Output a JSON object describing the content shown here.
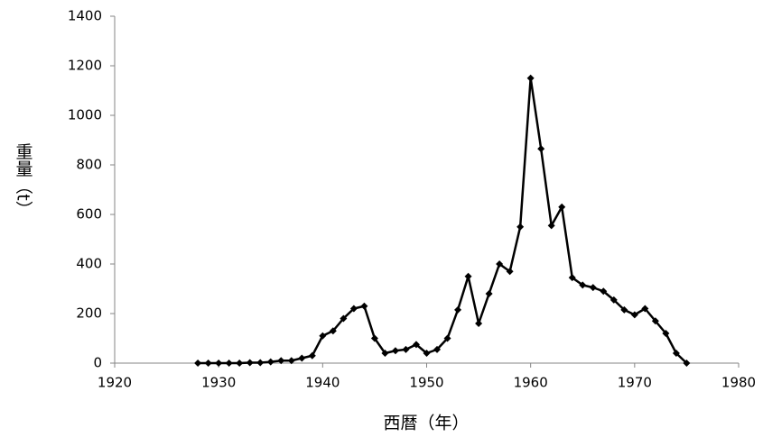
{
  "chart_data": {
    "type": "line",
    "x_label": "西暦（年）",
    "y_label": "重量（t）",
    "color": "#000000",
    "x": [
      1928,
      1929,
      1930,
      1931,
      1932,
      1933,
      1934,
      1935,
      1936,
      1937,
      1938,
      1939,
      1940,
      1941,
      1942,
      1943,
      1944,
      1945,
      1946,
      1947,
      1948,
      1949,
      1950,
      1951,
      1952,
      1953,
      1954,
      1955,
      1956,
      1957,
      1958,
      1959,
      1960,
      1961,
      1962,
      1963,
      1964,
      1965,
      1966,
      1967,
      1968,
      1969,
      1970,
      1971,
      1972,
      1973,
      1974,
      1975
    ],
    "values": [
      0,
      0,
      0,
      0,
      0,
      2,
      2,
      5,
      10,
      10,
      20,
      30,
      110,
      130,
      180,
      220,
      230,
      100,
      40,
      50,
      55,
      75,
      40,
      55,
      100,
      215,
      350,
      160,
      280,
      400,
      370,
      550,
      1150,
      865,
      555,
      630,
      345,
      315,
      305,
      290,
      255,
      215,
      195,
      220,
      170,
      120,
      40,
      0
    ],
    "xlim": [
      1920,
      1980
    ],
    "xticks": [
      1920,
      1930,
      1940,
      1950,
      1960,
      1970,
      1980
    ],
    "ylim": [
      0,
      1400
    ],
    "yticks": [
      0,
      200,
      400,
      600,
      800,
      1000,
      1200,
      1400
    ],
    "grid": false
  }
}
